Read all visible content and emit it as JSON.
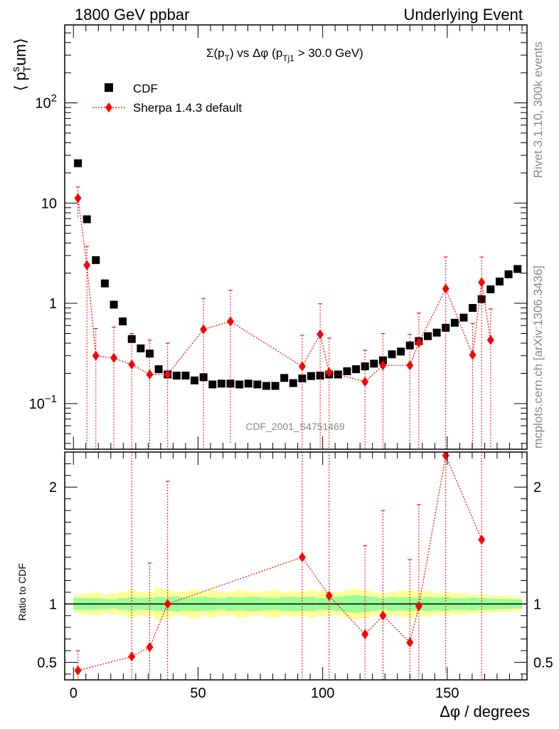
{
  "header": {
    "left": "1800 GeV ppbar",
    "right": "Underlying Event"
  },
  "side": {
    "rivet": "Rivet 3.1.10,  300k events",
    "mcplots": "mcplots.cern.ch [arXiv:1306.3436]"
  },
  "watermark": "CDF_2001_S4751469",
  "colors": {
    "cdf": "#000000",
    "sherpa": "#ff0000",
    "band_inner": "#99ff99",
    "band_outer": "#ffff99"
  },
  "chart_data": [
    {
      "type": "scatter",
      "title": "Σ(p_T) vs Δφ (p_Tj1 > 30.0 GeV)",
      "title_parts": {
        "a": "Σ(p",
        "b": "T",
        "c": ") vs Δφ (p",
        "d": "Tj1",
        "e": " > 30.0 GeV)"
      },
      "ylabel": "⟨ p_T^s um⟩",
      "ylabel_parts": {
        "a": "⟨ p",
        "sup": "s",
        "sub": "T",
        "b": "um⟩"
      },
      "yscale": "log",
      "ylim": [
        0.035,
        600
      ],
      "xlim": [
        -3.5,
        182
      ],
      "y_ticks": [
        {
          "value": 0.1,
          "label": "10",
          "exp": "−1"
        },
        {
          "value": 1,
          "label": "1",
          "exp": ""
        },
        {
          "value": 10,
          "label": "10",
          "exp": ""
        },
        {
          "value": 100,
          "label": "10",
          "exp": "2"
        }
      ],
      "legend": {
        "position": "top-left",
        "entries": [
          "CDF",
          "Sherpa 1.4.3 default"
        ]
      },
      "series": [
        {
          "name": "CDF",
          "marker": "square",
          "x": [
            1.8,
            5.4,
            9.0,
            12.6,
            16.2,
            19.8,
            23.4,
            27.0,
            30.6,
            34.2,
            37.8,
            41.4,
            45.0,
            48.6,
            52.2,
            55.8,
            59.4,
            63.0,
            66.6,
            70.2,
            73.8,
            77.4,
            81.0,
            84.6,
            88.2,
            91.8,
            95.4,
            99.0,
            102.6,
            106.2,
            109.8,
            113.4,
            117.0,
            120.6,
            124.2,
            127.8,
            131.4,
            135.0,
            138.6,
            142.2,
            145.8,
            149.4,
            153.0,
            156.6,
            160.2,
            163.8,
            167.4,
            171.0,
            174.6,
            178.2
          ],
          "y": [
            25,
            6.9,
            2.7,
            1.58,
            0.97,
            0.66,
            0.44,
            0.355,
            0.315,
            0.22,
            0.195,
            0.19,
            0.19,
            0.17,
            0.183,
            0.155,
            0.158,
            0.158,
            0.155,
            0.158,
            0.155,
            0.15,
            0.15,
            0.18,
            0.16,
            0.178,
            0.188,
            0.19,
            0.195,
            0.195,
            0.21,
            0.22,
            0.235,
            0.25,
            0.27,
            0.31,
            0.33,
            0.38,
            0.42,
            0.47,
            0.51,
            0.57,
            0.64,
            0.72,
            0.9,
            1.1,
            1.38,
            1.65,
            1.95,
            2.2
          ]
        },
        {
          "name": "Sherpa 1.4.3 default",
          "marker": "diamond",
          "x": [
            1.8,
            5.4,
            9.0,
            16.2,
            23.4,
            30.6,
            37.8,
            52.2,
            63.0,
            91.8,
            99.0,
            102.6,
            117.0,
            124.2,
            135.0,
            138.6,
            149.4,
            160.2,
            163.8,
            167.4
          ],
          "y": [
            11.2,
            2.4,
            0.3,
            0.285,
            0.245,
            0.195,
            0.195,
            0.55,
            0.66,
            0.235,
            0.49,
            0.205,
            0.165,
            0.24,
            0.24,
            0.405,
            1.4,
            0.305,
            1.62,
            0.43
          ],
          "err_lo": [
            7.0,
            0.04,
            0.02,
            0.02,
            0.02,
            0.02,
            0.03,
            0.03,
            0.04,
            0.03,
            0.025,
            0.025,
            0.02,
            0.02,
            0.02,
            0.03,
            0.03,
            0.02,
            0.03,
            0.03
          ],
          "err_hi": [
            14.5,
            3.7,
            0.56,
            0.58,
            0.5,
            0.43,
            0.4,
            1.12,
            1.35,
            0.48,
            0.99,
            0.45,
            0.34,
            0.5,
            0.49,
            0.8,
            2.9,
            0.63,
            2.9,
            0.88
          ]
        }
      ]
    },
    {
      "type": "scatter",
      "ylabel": "Ratio to CDF",
      "xlabel": "Δφ / degrees",
      "xlim": [
        -3.5,
        182
      ],
      "ylim": [
        0.35,
        2.3
      ],
      "x_ticks": [
        0,
        50,
        100,
        150
      ],
      "y_ticks": [
        0.5,
        1,
        2
      ],
      "reference_line": 1,
      "bands": {
        "x_edges": [
          0,
          3.6,
          7.2,
          10.8,
          14.4,
          18,
          21.6,
          25.2,
          28.8,
          32.4,
          36,
          39.6,
          43.2,
          46.8,
          50.4,
          54,
          57.6,
          61.2,
          64.8,
          68.4,
          72,
          75.6,
          79.2,
          82.8,
          86.4,
          90,
          93.6,
          97.2,
          100.8,
          104.4,
          108,
          111.6,
          115.2,
          118.8,
          122.4,
          126,
          129.6,
          133.2,
          136.8,
          140.4,
          144,
          147.6,
          151.2,
          154.8,
          158.4,
          162,
          165.6,
          169.2,
          172.8,
          176.4,
          180
        ],
        "inner": [
          0.05,
          0.05,
          0.05,
          0.045,
          0.04,
          0.05,
          0.06,
          0.05,
          0.055,
          0.06,
          0.06,
          0.065,
          0.055,
          0.06,
          0.06,
          0.055,
          0.05,
          0.06,
          0.055,
          0.06,
          0.06,
          0.055,
          0.05,
          0.06,
          0.06,
          0.06,
          0.06,
          0.05,
          0.055,
          0.06,
          0.07,
          0.075,
          0.07,
          0.06,
          0.05,
          0.06,
          0.055,
          0.06,
          0.055,
          0.06,
          0.055,
          0.06,
          0.05,
          0.05,
          0.055,
          0.05,
          0.045,
          0.045,
          0.04,
          0.04
        ],
        "outer": [
          0.08,
          0.09,
          0.1,
          0.08,
          0.09,
          0.1,
          0.12,
          0.1,
          0.1,
          0.14,
          0.12,
          0.1,
          0.11,
          0.13,
          0.1,
          0.12,
          0.1,
          0.1,
          0.12,
          0.11,
          0.1,
          0.11,
          0.12,
          0.1,
          0.11,
          0.1,
          0.12,
          0.11,
          0.1,
          0.1,
          0.12,
          0.13,
          0.12,
          0.1,
          0.09,
          0.1,
          0.11,
          0.12,
          0.1,
          0.11,
          0.09,
          0.1,
          0.09,
          0.09,
          0.08,
          0.08,
          0.07,
          0.07,
          0.07,
          0.06
        ]
      },
      "series": [
        {
          "name": "Sherpa 1.4.3 default",
          "x": [
            1.8,
            23.4,
            30.6,
            37.8,
            91.8,
            102.6,
            117.0,
            124.2,
            135.0,
            138.6,
            149.4,
            163.8
          ],
          "y": [
            0.43,
            0.55,
            0.63,
            1.0,
            1.4,
            1.07,
            0.74,
            0.9,
            0.67,
            0.98,
            2.27,
            1.55
          ],
          "err_lo": [
            0.28,
            0.25,
            0.2,
            0.25,
            0.2,
            0.25,
            0.2,
            0.2,
            0.2,
            0.25,
            0.4,
            0.2
          ],
          "err_hi": [
            0.6,
            2.3,
            1.35,
            2.05,
            2.3,
            2.3,
            1.5,
            1.8,
            1.38,
            1.85,
            2.3,
            2.3
          ]
        }
      ],
      "offscale_note": "points outside 0.35-2.3 are clipped"
    }
  ]
}
